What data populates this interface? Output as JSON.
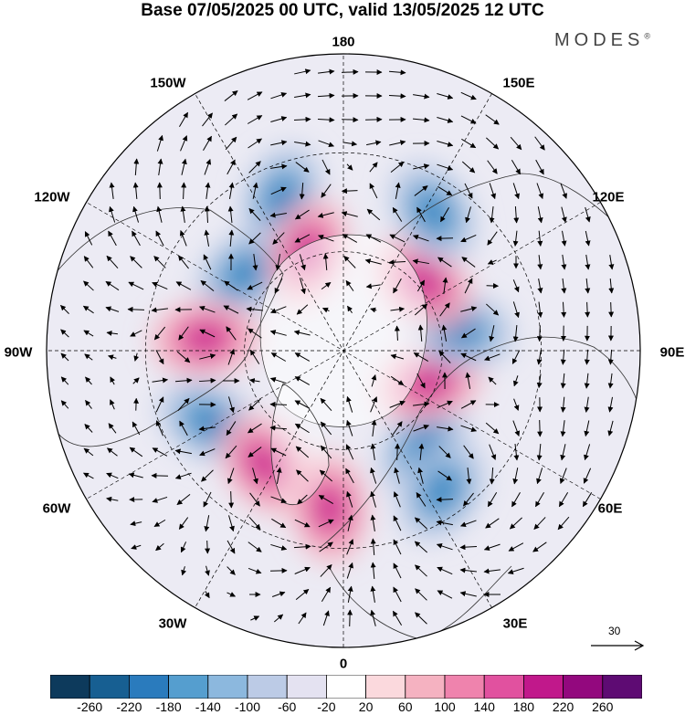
{
  "header": {
    "title": "Base 07/05/2025 00 UTC, valid 13/05/2025 12 UTC",
    "brand": "MODES",
    "brand_mark": "®"
  },
  "map": {
    "projection": "north-polar-stereographic",
    "longitude_labels": [
      "180",
      "150E",
      "120E",
      "90E",
      "60E",
      "30E",
      "0",
      "30W",
      "60W",
      "90W",
      "120W",
      "150W"
    ],
    "anomaly_centers": [
      {
        "name": "anomaly-neg-pacific",
        "sign": "negative",
        "lon": -158,
        "lat": 40
      },
      {
        "name": "anomaly-neg-canada",
        "sign": "negative",
        "lon": -128,
        "lat": 52
      },
      {
        "name": "anomaly-pos-alaska",
        "sign": "positive",
        "lon": -160,
        "lat": 58
      },
      {
        "name": "anomaly-pos-hudson",
        "sign": "positive",
        "lon": -95,
        "lat": 48
      },
      {
        "name": "anomaly-neg-atlantic",
        "sign": "negative",
        "lon": -62,
        "lat": 44
      },
      {
        "name": "anomaly-pos-greenland-sea",
        "sign": "positive",
        "lon": -35,
        "lat": 48
      },
      {
        "name": "anomaly-pos-europe",
        "sign": "positive",
        "lon": -5,
        "lat": 42
      },
      {
        "name": "anomaly-neg-scandinavia",
        "sign": "negative",
        "lon": 40,
        "lat": 52
      },
      {
        "name": "anomaly-neg-black-sea",
        "sign": "negative",
        "lon": 35,
        "lat": 38
      },
      {
        "name": "anomaly-pos-siberia",
        "sign": "positive",
        "lon": 70,
        "lat": 62
      },
      {
        "name": "anomaly-neg-central-asia",
        "sign": "negative",
        "lon": 100,
        "lat": 54
      },
      {
        "name": "anomaly-pos-east-siberia",
        "sign": "positive",
        "lon": 130,
        "lat": 58
      },
      {
        "name": "anomaly-neg-kamchatka",
        "sign": "negative",
        "lon": 147,
        "lat": 40
      }
    ],
    "reference_vector": {
      "value": "30"
    }
  },
  "colorbar": {
    "colors": [
      "#0d3a5c",
      "#175f92",
      "#2a7bbd",
      "#559ecf",
      "#8cb8de",
      "#bccbe6",
      "#e4e2f1",
      "#ffffff",
      "#fbd9dd",
      "#f5b2c1",
      "#ef83ad",
      "#e1519f",
      "#c1188b",
      "#93087e",
      "#5e0b73"
    ],
    "labels": [
      "-260",
      "-220",
      "-180",
      "-140",
      "-100",
      "-60",
      "-20",
      "20",
      "60",
      "100",
      "140",
      "180",
      "220",
      "260"
    ]
  }
}
